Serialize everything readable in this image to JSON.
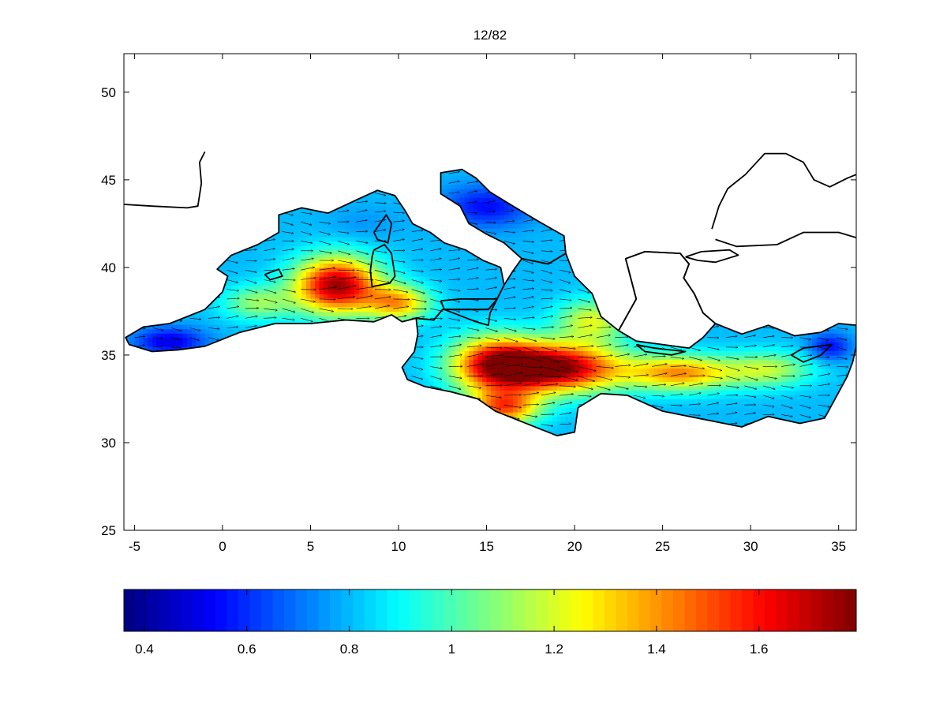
{
  "chart_data": {
    "type": "heatmap",
    "title": "12/82",
    "xlabel": "",
    "ylabel": "",
    "xlim": [
      -5.6,
      36
    ],
    "ylim": [
      25,
      52.2
    ],
    "x_ticks": [
      "-5",
      "0",
      "5",
      "10",
      "15",
      "20",
      "25",
      "30",
      "35"
    ],
    "y_ticks": [
      "25",
      "30",
      "35",
      "40",
      "45",
      "50"
    ],
    "grid": false,
    "colorbar": {
      "colormap": "jet",
      "range": [
        0.36,
        1.79
      ],
      "ticks": [
        "0.4",
        "0.6",
        "0.8",
        "1",
        "1.2",
        "1.4",
        "1.6"
      ]
    },
    "field": {
      "background_value": 0.8,
      "hotspots": [
        {
          "lon": 6.5,
          "lat": 39.0,
          "value": 1.75,
          "radius_lon": 2.4,
          "radius_lat": 1.6
        },
        {
          "lon": 19.0,
          "lat": 34.3,
          "value": 1.78,
          "radius_lon": 3.6,
          "radius_lat": 1.4
        },
        {
          "lon": 15.5,
          "lat": 34.5,
          "value": 1.55,
          "radius_lon": 2.5,
          "radius_lat": 1.6
        },
        {
          "lon": 16.0,
          "lat": 32.0,
          "value": 1.45,
          "radius_lon": 2.0,
          "radius_lat": 1.0
        },
        {
          "lon": 10.0,
          "lat": 38.0,
          "value": 1.35,
          "radius_lon": 1.8,
          "radius_lat": 1.0
        },
        {
          "lon": 26.0,
          "lat": 34.0,
          "value": 1.4,
          "radius_lon": 3.0,
          "radius_lat": 1.0
        },
        {
          "lon": 31.0,
          "lat": 34.2,
          "value": 1.15,
          "radius_lon": 2.5,
          "radius_lat": 1.0
        },
        {
          "lon": 21.0,
          "lat": 37.0,
          "value": 1.2,
          "radius_lon": 2.0,
          "radius_lat": 1.2
        },
        {
          "lon": 2.0,
          "lat": 38.0,
          "value": 1.1,
          "radius_lon": 2.0,
          "radius_lat": 1.0
        },
        {
          "lon": -3.0,
          "lat": 35.8,
          "value": 0.5,
          "radius_lon": 2.0,
          "radius_lat": 0.8
        },
        {
          "lon": 15.0,
          "lat": 43.5,
          "value": 0.55,
          "radius_lon": 2.5,
          "radius_lat": 1.2
        },
        {
          "lon": 8.0,
          "lat": 42.5,
          "value": 0.75,
          "radius_lon": 2.0,
          "radius_lat": 1.0
        },
        {
          "lon": 34.5,
          "lat": 35.5,
          "value": 0.55,
          "radius_lon": 1.2,
          "radius_lat": 0.8
        },
        {
          "lon": 25.5,
          "lat": 38.5,
          "value": 0.7,
          "radius_lon": 1.2,
          "radius_lat": 1.0
        }
      ]
    },
    "vectors": {
      "description_free": true,
      "mean_direction": [
        1.0,
        -0.05
      ]
    }
  }
}
